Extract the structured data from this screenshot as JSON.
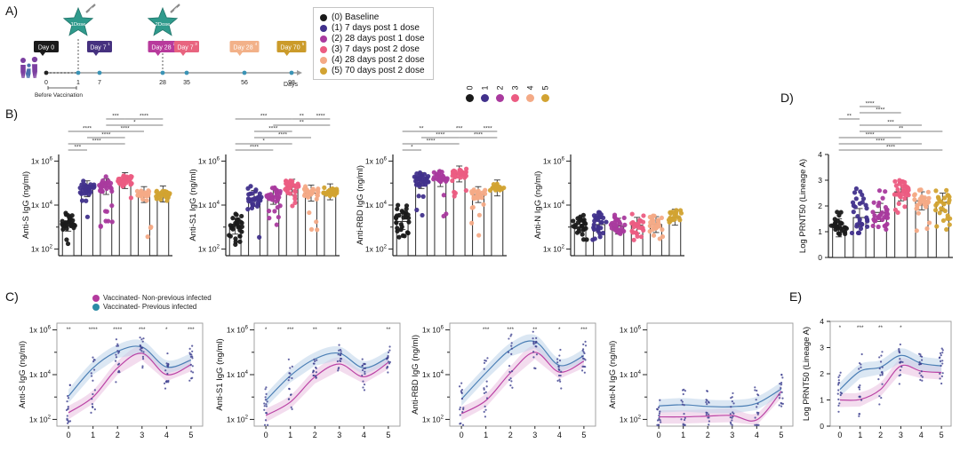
{
  "figure": {
    "panel_labels": {
      "A": "A)",
      "B": "B)",
      "C": "C)",
      "D": "D)",
      "E": "E)"
    }
  },
  "group_legend": {
    "items": [
      {
        "id": "0",
        "label": "(0) Baseline",
        "color": "#1a1a1a"
      },
      {
        "id": "1",
        "label": "(1) 7 days post 1 dose",
        "color": "#41318c"
      },
      {
        "id": "2",
        "label": "(2) 28 days post 1 dose",
        "color": "#a93a9e"
      },
      {
        "id": "3",
        "label": "(3) 7 days post 2 dose",
        "color": "#ec5c82"
      },
      {
        "id": "4",
        "label": "(4) 28 days post 2 dose",
        "color": "#f4aa86"
      },
      {
        "id": "5",
        "label": "(5) 70 days post 2 dose",
        "color": "#d2a332"
      }
    ]
  },
  "infection_legend": {
    "items": [
      {
        "label": "Vaccinated- Non-previous infected",
        "color": "#b43a9e"
      },
      {
        "label": "Vaccinated- Previous infected",
        "color": "#2b8ca6"
      }
    ]
  },
  "line_style": {
    "nonprev_line": "#bb43a5",
    "prev_line": "#4b7fb5",
    "nonprev_band": "#eabfe0",
    "prev_band": "#bdd3ea",
    "point_color": "#3c3f8e"
  },
  "timeline": {
    "doses": [
      {
        "label": "1Dose",
        "day": 1
      },
      {
        "label": "2Dose",
        "day": 28
      }
    ],
    "day_boxes": [
      {
        "text": "Day 0",
        "sup": "",
        "color": "#1a1a1a",
        "tick": 0
      },
      {
        "text": "Day 7",
        "sup": "1",
        "color": "#45317f",
        "tick": 7
      },
      {
        "text": "Day 28",
        "sup": "2",
        "color": "#b83a9c",
        "tick": 28
      },
      {
        "text": "Day 7",
        "sup": "3",
        "color": "#e8647f",
        "tick": 35
      },
      {
        "text": "Day 28",
        "sup": "4",
        "color": "#f2b189",
        "tick": 56
      },
      {
        "text": "Day 70",
        "sup": "5",
        "color": "#cb9b2a",
        "tick": 98
      }
    ],
    "ticks": [
      "0",
      "1",
      "7",
      "28",
      "35",
      "56",
      "98"
    ],
    "axis_label": "Days",
    "note": "Before Vaccination",
    "star_color": "#2f9a8c",
    "dot_color": "#3a93b5"
  },
  "chart_data": [
    {
      "id": "b_anti_s",
      "panel": "B",
      "type": "bar",
      "ylabel": "Anti-S IgG (ng/ml)",
      "yscale": "log",
      "ylim": [
        50,
        2000000
      ],
      "yticks": [
        100,
        10000,
        1000000
      ],
      "categories": [
        "0",
        "1",
        "2",
        "3",
        "4",
        "5"
      ],
      "values": [
        1500,
        55000,
        70000,
        130000,
        30000,
        32000
      ],
      "scatter": {
        "lo": [
          150,
          180,
          400,
          20000,
          250,
          12000
        ],
        "hi": [
          12000,
          300000,
          350000,
          450000,
          70000,
          70000
        ],
        "n": [
          30,
          34,
          34,
          34,
          28,
          26
        ]
      },
      "brackets": [
        [
          0,
          1,
          "***",
          1
        ],
        [
          0,
          3,
          "****",
          2
        ],
        [
          1,
          3,
          "****",
          3
        ],
        [
          0,
          2,
          "****",
          4
        ],
        [
          2,
          4,
          "****",
          4
        ],
        [
          2,
          5,
          "*",
          5
        ],
        [
          2,
          3,
          "***",
          6
        ],
        [
          3,
          5,
          "****",
          6
        ]
      ]
    },
    {
      "id": "b_anti_s1",
      "panel": "B",
      "type": "bar",
      "ylabel": "Anti-S1 IgG (ng/ml)",
      "yscale": "log",
      "ylim": [
        50,
        2000000
      ],
      "yticks": [
        100,
        10000,
        1000000
      ],
      "categories": [
        "0",
        "1",
        "2",
        "3",
        "4",
        "5"
      ],
      "values": [
        1100,
        20000,
        25000,
        65000,
        35000,
        40000
      ],
      "scatter": {
        "lo": [
          150,
          200,
          300,
          5000,
          200,
          10000
        ],
        "hi": [
          12000,
          150000,
          200000,
          250000,
          150000,
          120000
        ],
        "n": [
          28,
          32,
          32,
          32,
          30,
          26
        ]
      },
      "brackets": [
        [
          0,
          2,
          "****",
          1
        ],
        [
          0,
          3,
          "*",
          2
        ],
        [
          1,
          4,
          "****",
          3
        ],
        [
          1,
          3,
          "****",
          4
        ],
        [
          2,
          5,
          "**",
          5
        ],
        [
          0,
          3,
          "***",
          6
        ],
        [
          3,
          4,
          "**",
          6
        ],
        [
          4,
          5,
          "****",
          6
        ]
      ]
    },
    {
      "id": "b_anti_rbd",
      "panel": "B",
      "type": "bar",
      "ylabel": "Anti-RBD IgG (ng/ml)",
      "yscale": "log",
      "ylim": [
        50,
        2000000
      ],
      "yticks": [
        100,
        10000,
        1000000
      ],
      "categories": [
        "0",
        "1",
        "2",
        "3",
        "4",
        "5"
      ],
      "values": [
        1800,
        130000,
        160000,
        260000,
        30000,
        60000
      ],
      "scatter": {
        "lo": [
          200,
          250,
          700,
          25000,
          300,
          40000
        ],
        "hi": [
          60000,
          600000,
          600000,
          700000,
          80000,
          120000
        ],
        "n": [
          30,
          34,
          34,
          34,
          28,
          26
        ]
      },
      "brackets": [
        [
          0,
          1,
          "*",
          1
        ],
        [
          0,
          3,
          "****",
          2
        ],
        [
          1,
          3,
          "****",
          3
        ],
        [
          3,
          5,
          "****",
          3
        ],
        [
          0,
          2,
          "**",
          4
        ],
        [
          2,
          4,
          "***",
          4
        ],
        [
          4,
          5,
          "****",
          4
        ]
      ]
    },
    {
      "id": "b_anti_n",
      "panel": "B",
      "type": "bar",
      "ylabel": "Anti-N IgG (ng/ml)",
      "yscale": "log",
      "ylim": [
        50,
        2000000
      ],
      "yticks": [
        100,
        10000,
        1000000
      ],
      "categories": [
        "0",
        "1",
        "2",
        "3",
        "4",
        "5"
      ],
      "values": [
        1300,
        1300,
        1100,
        1200,
        1300,
        2800
      ],
      "scatter": {
        "lo": [
          250,
          250,
          250,
          250,
          250,
          1500
        ],
        "hi": [
          10000,
          15000,
          10000,
          8000,
          9000,
          9000
        ],
        "n": [
          26,
          28,
          28,
          26,
          26,
          22
        ]
      },
      "brackets": []
    },
    {
      "id": "d_prnt50",
      "panel": "D",
      "type": "bar",
      "ylabel": "Log PRNT50 (Lineage A)",
      "yscale": "linear",
      "ylim": [
        0,
        4
      ],
      "yticks": [
        0,
        1,
        2,
        3,
        4
      ],
      "categories": [
        "0",
        "1",
        "2",
        "3",
        "4",
        "5"
      ],
      "values": [
        1.15,
        1.55,
        1.75,
        2.55,
        2.2,
        2.15
      ],
      "scatter": {
        "lo": [
          0.9,
          0.95,
          1.0,
          1.0,
          1.0,
          1.0
        ],
        "hi": [
          2.4,
          3.45,
          3.3,
          3.3,
          3.2,
          3.1
        ],
        "n": [
          26,
          30,
          32,
          34,
          30,
          28
        ]
      },
      "brackets": [
        [
          0,
          5,
          "****",
          1
        ],
        [
          0,
          4,
          "****",
          2
        ],
        [
          0,
          3,
          "****",
          3
        ],
        [
          1,
          5,
          "**",
          4
        ],
        [
          1,
          4,
          "***",
          5
        ],
        [
          0,
          1,
          "**",
          6
        ],
        [
          1,
          3,
          "****",
          7
        ],
        [
          1,
          2,
          "****",
          8
        ]
      ]
    },
    {
      "id": "c_anti_s",
      "panel": "C",
      "type": "line",
      "ylabel": "Anti-S IgG (ng/ml)",
      "yscale": "log",
      "ylim": [
        50,
        2000000
      ],
      "yticks": [
        100,
        10000,
        1000000
      ],
      "x": [
        "0",
        "1",
        "2",
        "3",
        "4",
        "5"
      ],
      "series": [
        {
          "name": "Vaccinated- Non-previous infected",
          "values": [
            200,
            1000,
            20000,
            90000,
            10000,
            28000
          ]
        },
        {
          "name": "Vaccinated- Previous infected",
          "values": [
            1100,
            20000,
            110000,
            170000,
            22000,
            45000
          ]
        }
      ],
      "sig": [
        "**",
        "****",
        "****",
        "***",
        "*",
        "***"
      ]
    },
    {
      "id": "c_anti_s1",
      "panel": "C",
      "type": "line",
      "ylabel": "Anti-S1 IgG (ng/ml)",
      "yscale": "log",
      "ylim": [
        50,
        2000000
      ],
      "yticks": [
        100,
        10000,
        1000000
      ],
      "x": [
        "0",
        "1",
        "2",
        "3",
        "4",
        "5"
      ],
      "series": [
        {
          "name": "Vaccinated- Non-previous infected",
          "values": [
            150,
            600,
            8000,
            30000,
            8000,
            35000
          ]
        },
        {
          "name": "Vaccinated- Previous infected",
          "values": [
            700,
            9000,
            50000,
            90000,
            20000,
            60000
          ]
        }
      ],
      "sig": [
        "*",
        "***",
        "**",
        "**",
        "",
        "**"
      ]
    },
    {
      "id": "c_anti_rbd",
      "panel": "C",
      "type": "line",
      "ylabel": "Anti-RBD IgG (ng/ml)",
      "yscale": "log",
      "ylim": [
        50,
        2000000
      ],
      "yticks": [
        100,
        10000,
        1000000
      ],
      "x": [
        "0",
        "1",
        "2",
        "3",
        "4",
        "5"
      ],
      "series": [
        {
          "name": "Vaccinated- Non-previous infected",
          "values": [
            180,
            700,
            12000,
            100000,
            13000,
            40000
          ]
        },
        {
          "name": "Vaccinated- Previous infected",
          "values": [
            800,
            12000,
            130000,
            300000,
            26000,
            70000
          ]
        }
      ],
      "sig": [
        "",
        "***",
        "***",
        "**",
        "*",
        "***"
      ]
    },
    {
      "id": "c_anti_n",
      "panel": "C",
      "type": "line",
      "ylabel": "Anti-N IgG (ng/ml)",
      "yscale": "log",
      "ylim": [
        50,
        2000000
      ],
      "yticks": [
        100,
        10000,
        1000000
      ],
      "x": [
        "0",
        "1",
        "2",
        "3",
        "4",
        "5"
      ],
      "series": [
        {
          "name": "Vaccinated- Non-previous infected",
          "values": [
            130,
            130,
            140,
            150,
            95,
            1800
          ]
        },
        {
          "name": "Vaccinated- Previous infected",
          "values": [
            400,
            450,
            380,
            370,
            520,
            2300
          ]
        }
      ],
      "sig": [
        "",
        "",
        "",
        "",
        "",
        ""
      ]
    },
    {
      "id": "e_prnt50",
      "panel": "E",
      "type": "line",
      "ylabel": "Log PRNT50 (Lineage A)",
      "yscale": "linear",
      "ylim": [
        0,
        4
      ],
      "yticks": [
        0,
        1,
        2,
        3,
        4
      ],
      "x": [
        "0",
        "1",
        "2",
        "3",
        "4",
        "5"
      ],
      "series": [
        {
          "name": "Vaccinated- Non-previous infected",
          "values": [
            1.0,
            1.02,
            1.4,
            2.3,
            2.1,
            2.05
          ]
        },
        {
          "name": "Vaccinated- Previous infected",
          "values": [
            1.4,
            2.1,
            2.25,
            2.7,
            2.4,
            2.3
          ]
        }
      ],
      "sig": [
        "*",
        "***",
        "**",
        "*",
        "",
        ""
      ]
    }
  ]
}
